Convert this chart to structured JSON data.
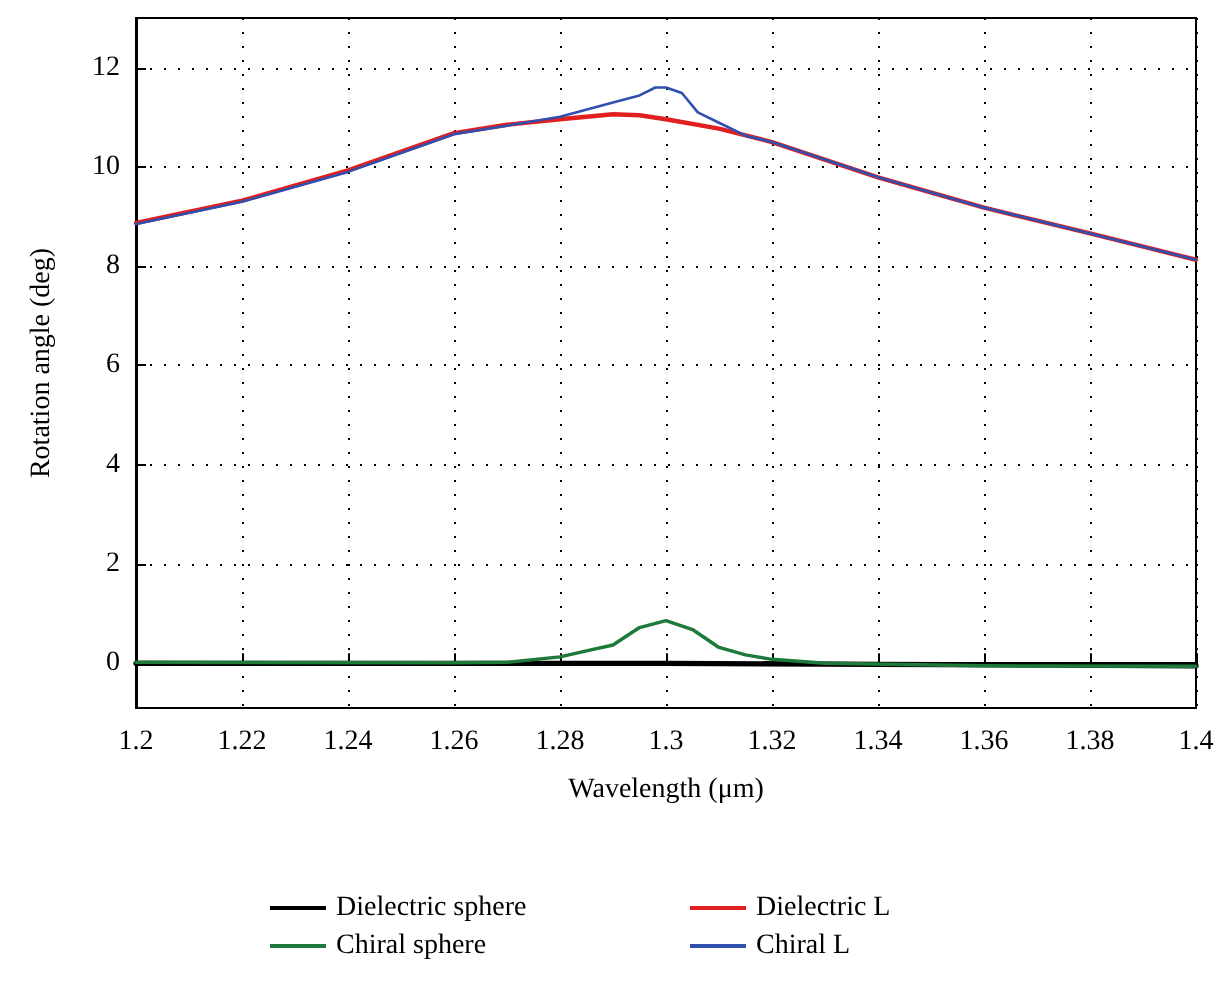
{
  "chart_data": {
    "type": "line",
    "xlabel": "Wavelength (μm)",
    "ylabel": "Rotation angle (deg)",
    "xlim": [
      1.2,
      1.4
    ],
    "xticks": [
      1.2,
      1.22,
      1.24,
      1.26,
      1.28,
      1.3,
      1.32,
      1.34,
      1.36,
      1.38,
      1.4
    ],
    "ylim": [
      -0.9,
      13
    ],
    "yticks": [
      0,
      2,
      4,
      6,
      8,
      10,
      12
    ],
    "grid": true,
    "legend": "bottom",
    "marker": "none",
    "line_style": "solid",
    "series": [
      {
        "name": "Dielectric sphere",
        "color": "#000000",
        "x": [
          1.2,
          1.3,
          1.34,
          1.4
        ],
        "values": [
          0,
          0,
          -0.02,
          -0.05
        ]
      },
      {
        "name": "Dielectric L",
        "color": "#e02020",
        "x": [
          1.2,
          1.22,
          1.24,
          1.26,
          1.27,
          1.28,
          1.29,
          1.295,
          1.3,
          1.31,
          1.32,
          1.34,
          1.36,
          1.38,
          1.4
        ],
        "values": [
          8.87,
          9.32,
          9.93,
          10.68,
          10.85,
          10.96,
          11.06,
          11.04,
          10.96,
          10.77,
          10.5,
          9.79,
          9.18,
          8.66,
          8.13
        ]
      },
      {
        "name": "Chiral sphere",
        "color": "#1e7a3a",
        "x": [
          1.2,
          1.26,
          1.27,
          1.28,
          1.285,
          1.29,
          1.295,
          1.3,
          1.305,
          1.31,
          1.315,
          1.32,
          1.33,
          1.36,
          1.4
        ],
        "values": [
          0.02,
          0.01,
          0.02,
          0.13,
          0.25,
          0.37,
          0.72,
          0.86,
          0.68,
          0.32,
          0.17,
          0.08,
          0,
          -0.05,
          -0.06
        ]
      },
      {
        "name": "Chiral L",
        "color": "#3050b0",
        "x": [
          1.2,
          1.22,
          1.24,
          1.26,
          1.27,
          1.28,
          1.29,
          1.295,
          1.298,
          1.3,
          1.303,
          1.306,
          1.31,
          1.315,
          1.32,
          1.34,
          1.36,
          1.38,
          1.4
        ],
        "values": [
          8.85,
          9.3,
          9.9,
          10.66,
          10.83,
          11.01,
          11.3,
          11.44,
          11.6,
          11.6,
          11.49,
          11.1,
          10.89,
          10.63,
          10.5,
          9.79,
          9.18,
          8.66,
          8.13
        ]
      }
    ]
  }
}
